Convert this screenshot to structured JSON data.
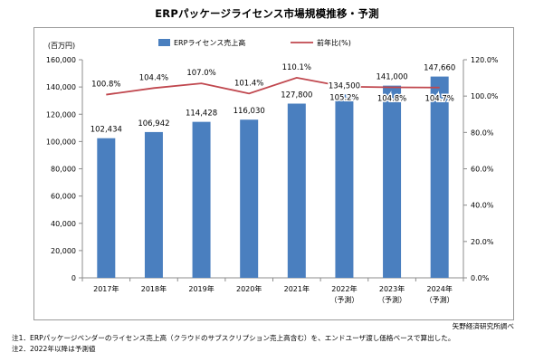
{
  "title": "ERPパッケージライセンス市場規模推移・予測",
  "source": "矢野経済研究所調べ",
  "notes": [
    "注1．ERPパッケージベンダーのライセンス売上高（クラウドのサブスクリプション売上高含む）を、エンドユーザ渡し価格ベースで算出した。",
    "注2．2022年以降は予測値"
  ],
  "chart_data": {
    "type": "bar",
    "y_unit_label": "(百万円)",
    "categories": [
      {
        "year": "2017年",
        "sub": ""
      },
      {
        "year": "2018年",
        "sub": ""
      },
      {
        "year": "2019年",
        "sub": ""
      },
      {
        "year": "2020年",
        "sub": ""
      },
      {
        "year": "2021年",
        "sub": ""
      },
      {
        "year": "2022年",
        "sub": "（予測）"
      },
      {
        "year": "2023年",
        "sub": "（予測）"
      },
      {
        "year": "2024年",
        "sub": "（予測）"
      }
    ],
    "series": [
      {
        "name": "ERPライセンス売上高",
        "kind": "bar",
        "axis": "left",
        "color": "#4a7fbf",
        "values": [
          102434,
          106942,
          114428,
          116030,
          127800,
          134500,
          141000,
          147660
        ],
        "labels": [
          "102,434",
          "106,942",
          "114,428",
          "116,030",
          "127,800",
          "134,500",
          "141,000",
          "147,660"
        ]
      },
      {
        "name": "前年比(%)",
        "kind": "line",
        "axis": "right",
        "color": "#c0474e",
        "values": [
          100.8,
          104.4,
          107.0,
          101.4,
          110.1,
          105.2,
          104.8,
          104.7
        ],
        "labels": [
          "100.8%",
          "104.4%",
          "107.0%",
          "101.4%",
          "110.1%",
          "105.2%",
          "104.8%",
          "104.7%"
        ]
      }
    ],
    "y_left": {
      "min": 0,
      "max": 160000,
      "step": 20000,
      "ticks": [
        "0",
        "20,000",
        "40,000",
        "60,000",
        "80,000",
        "100,000",
        "120,000",
        "140,000",
        "160,000"
      ]
    },
    "y_right": {
      "min": 0,
      "max": 120,
      "step": 20,
      "ticks": [
        "0.0%",
        "20.0%",
        "40.0%",
        "60.0%",
        "80.0%",
        "100.0%",
        "120.0%"
      ]
    },
    "legend_position": "top",
    "grid": false
  }
}
